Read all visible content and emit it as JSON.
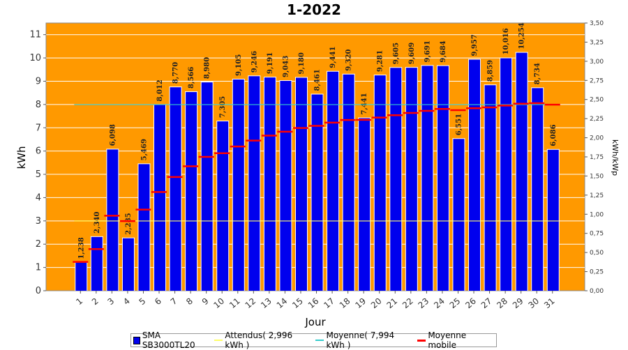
{
  "chart_data": {
    "type": "bar",
    "title": "1-2022",
    "xlabel": "Jour",
    "ylabel": "kWh",
    "y2label": "kWh/kWp",
    "ylim": [
      0,
      11.5
    ],
    "y2lim": [
      0,
      3.5
    ],
    "yticks": [
      0,
      1,
      2,
      3,
      4,
      5,
      6,
      7,
      8,
      9,
      10,
      11
    ],
    "y2ticks": [
      "0,00",
      "0,25",
      "0,50",
      "0,75",
      "1,00",
      "1,25",
      "1,50",
      "1,75",
      "2,00",
      "2,25",
      "2,50",
      "2,75",
      "3,00",
      "3,25",
      "3,50"
    ],
    "categories": [
      "1",
      "2",
      "3",
      "4",
      "5",
      "6",
      "7",
      "8",
      "9",
      "10",
      "11",
      "12",
      "13",
      "14",
      "15",
      "16",
      "17",
      "18",
      "19",
      "20",
      "21",
      "22",
      "23",
      "24",
      "25",
      "26",
      "27",
      "28",
      "29",
      "30",
      "31"
    ],
    "series": [
      {
        "name": "SMA SB3000TL20",
        "type": "bar",
        "color": "#0000ee",
        "values": [
          1.238,
          2.34,
          6.098,
          2.285,
          5.469,
          8.012,
          8.77,
          8.566,
          8.98,
          7.305,
          9.105,
          9.246,
          9.191,
          9.043,
          9.18,
          8.461,
          9.441,
          9.32,
          7.441,
          9.281,
          9.605,
          9.609,
          9.691,
          9.684,
          6.551,
          9.957,
          8.859,
          10.016,
          10.254,
          8.734,
          6.086
        ],
        "labels": [
          "1,238",
          "2,340",
          "6,098",
          "2,285",
          "5,469",
          "8,012",
          "8,770",
          "8,566",
          "8,980",
          "7,305",
          "9,105",
          "9,246",
          "9,191",
          "9,043",
          "9,180",
          "8,461",
          "9,441",
          "9,320",
          "7,441",
          "9,281",
          "9,605",
          "9,609",
          "9,691",
          "9,684",
          "6,551",
          "9,957",
          "8,859",
          "10,016",
          "10,254",
          "8,734",
          "6,086"
        ]
      },
      {
        "name": "Attendus( 2,996 kWh )",
        "type": "line",
        "color": "#ffff66",
        "value": 2.996
      },
      {
        "name": "Moyenne( 7,994 kWh )",
        "type": "line",
        "color": "#33cccc",
        "value": 7.994
      },
      {
        "name": "Moyenne mobile",
        "type": "step",
        "color": "#ff0000",
        "values": [
          1.238,
          1.789,
          3.225,
          2.99,
          3.486,
          4.24,
          4.887,
          5.347,
          5.751,
          5.907,
          6.197,
          6.451,
          6.662,
          6.832,
          6.989,
          7.081,
          7.22,
          7.335,
          7.34,
          7.437,
          7.54,
          7.638,
          7.727,
          7.808,
          7.757,
          7.84,
          7.878,
          7.955,
          8.034,
          8.057,
          7.994
        ]
      }
    ],
    "background": "#ff9900",
    "gridlines": true,
    "legend_position": "bottom"
  }
}
